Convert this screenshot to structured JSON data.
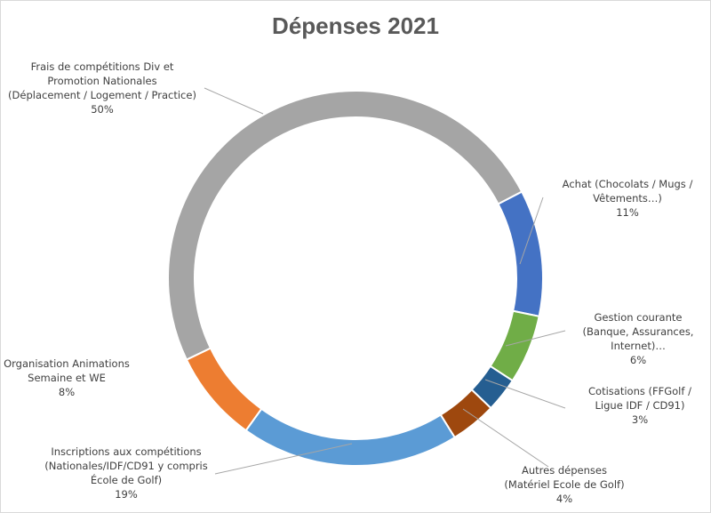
{
  "chart_data": {
    "type": "pie",
    "subtype": "doughnut",
    "title": "Dépenses 2021",
    "legend": "none",
    "slices": [
      {
        "label": [
          "Achat (Chocolats / Mugs /",
          "Vêtements…)"
        ],
        "percent_label": "11%",
        "value": 11,
        "color": "#4472C4"
      },
      {
        "label": [
          "Gestion courante",
          "(Banque, Assurances,",
          "Internet)…"
        ],
        "percent_label": "6%",
        "value": 6,
        "color": "#70AD47"
      },
      {
        "label": [
          "Cotisations (FFGolf /",
          "Ligue IDF / CD91)"
        ],
        "percent_label": "3%",
        "value": 3,
        "color": "#255E91"
      },
      {
        "label": [
          "Autres dépenses",
          "(Matériel Ecole de Golf)"
        ],
        "percent_label": "4%",
        "value": 4,
        "color": "#9E480E"
      },
      {
        "label": [
          "Inscriptions aux compétitions",
          "(Nationales/IDF/CD91 y compris",
          "École de Golf)"
        ],
        "percent_label": "19%",
        "value": 19,
        "color": "#5B9BD5"
      },
      {
        "label": [
          "Organisation Animations",
          "Semaine et WE"
        ],
        "percent_label": "8%",
        "value": 8,
        "color": "#ED7D31"
      },
      {
        "label": [
          "Frais de compétitions Div et",
          "Promotion Nationales",
          "(Déplacement / Logement / Practice)"
        ],
        "percent_label": "50%",
        "value": 50,
        "color": "#A5A5A5"
      }
    ]
  }
}
